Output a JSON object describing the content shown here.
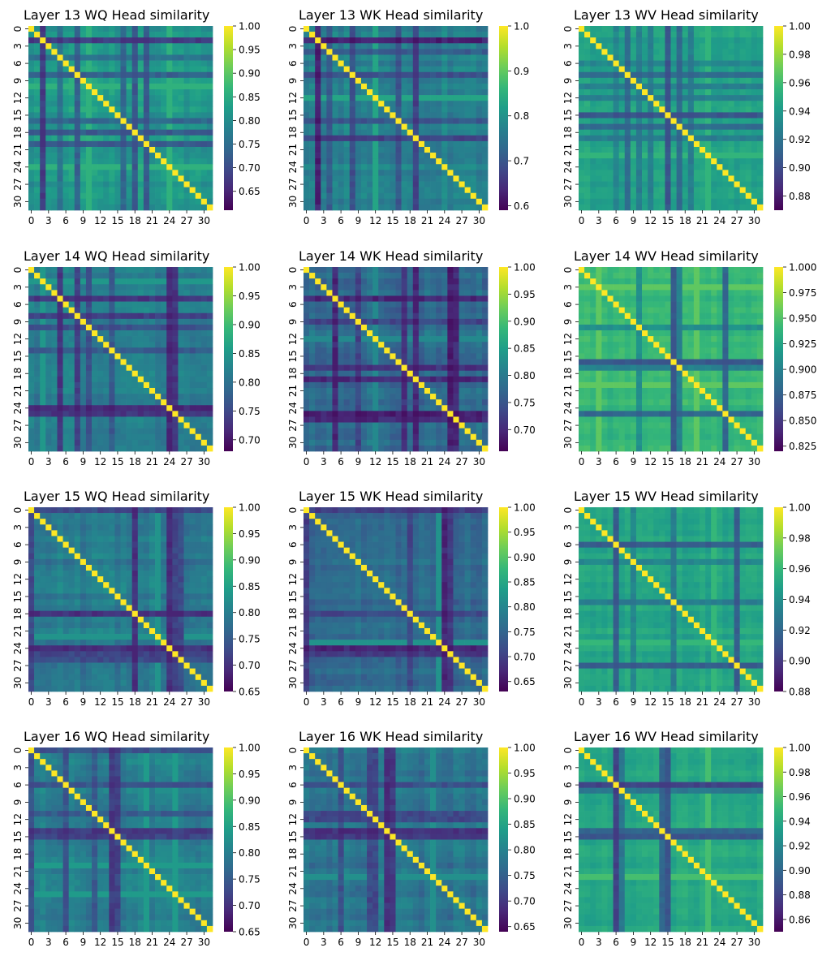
{
  "colormap": "viridis",
  "chart_data": [
    {
      "type": "heatmap",
      "title": "Layer 13 WQ Head similarity",
      "size": 32,
      "tick_step": 3,
      "colorbar": {
        "min": 0.61,
        "max": 1.0,
        "ticks": [
          "0.65",
          "0.70",
          "0.75",
          "0.80",
          "0.85",
          "0.90",
          "0.95",
          "1.00"
        ]
      },
      "typical": 0.82,
      "spread": 0.03,
      "weak_heads": [
        {
          "i": 2,
          "v": 0.68
        },
        {
          "i": 8,
          "v": 0.73
        },
        {
          "i": 16,
          "v": 0.74
        },
        {
          "i": 18,
          "v": 0.72
        },
        {
          "i": 20,
          "v": 0.72
        },
        {
          "i": 5,
          "v": 0.76
        }
      ],
      "strong_heads": [
        {
          "i": 10,
          "v": 0.86
        },
        {
          "i": 24,
          "v": 0.86
        }
      ]
    },
    {
      "type": "heatmap",
      "title": "Layer 13 WK Head similarity",
      "size": 32,
      "tick_step": 3,
      "colorbar": {
        "min": 0.59,
        "max": 1.0,
        "ticks": [
          "0.6",
          "0.7",
          "0.8",
          "0.9",
          "1.0"
        ]
      },
      "typical": 0.78,
      "spread": 0.035,
      "weak_heads": [
        {
          "i": 2,
          "v": 0.63
        },
        {
          "i": 8,
          "v": 0.69
        },
        {
          "i": 16,
          "v": 0.7
        },
        {
          "i": 19,
          "v": 0.67
        },
        {
          "i": 4,
          "v": 0.71
        }
      ],
      "strong_heads": [
        {
          "i": 12,
          "v": 0.83
        }
      ]
    },
    {
      "type": "heatmap",
      "title": "Layer 13 WV Head similarity",
      "size": 32,
      "tick_step": 3,
      "colorbar": {
        "min": 0.87,
        "max": 1.0,
        "ticks": [
          "0.88",
          "0.90",
          "0.92",
          "0.94",
          "0.96",
          "0.98",
          "1.00"
        ]
      },
      "typical": 0.945,
      "spread": 0.008,
      "weak_heads": [
        {
          "i": 8,
          "v": 0.915
        },
        {
          "i": 15,
          "v": 0.905
        },
        {
          "i": 17,
          "v": 0.915
        },
        {
          "i": 10,
          "v": 0.925
        },
        {
          "i": 12,
          "v": 0.925
        },
        {
          "i": 19,
          "v": 0.925
        },
        {
          "i": 6,
          "v": 0.93
        }
      ],
      "strong_heads": [
        {
          "i": 22,
          "v": 0.955
        }
      ]
    },
    {
      "type": "heatmap",
      "title": "Layer 14 WQ Head similarity",
      "size": 32,
      "tick_step": 3,
      "colorbar": {
        "min": 0.68,
        "max": 1.0,
        "ticks": [
          "0.70",
          "0.75",
          "0.80",
          "0.85",
          "0.90",
          "0.95",
          "1.00"
        ]
      },
      "typical": 0.82,
      "spread": 0.025,
      "weak_heads": [
        {
          "i": 5,
          "v": 0.73
        },
        {
          "i": 8,
          "v": 0.74
        },
        {
          "i": 24,
          "v": 0.72
        },
        {
          "i": 25,
          "v": 0.73
        },
        {
          "i": 14,
          "v": 0.77
        },
        {
          "i": 10,
          "v": 0.76
        }
      ],
      "strong_heads": [
        {
          "i": 2,
          "v": 0.85
        }
      ]
    },
    {
      "type": "heatmap",
      "title": "Layer 14 WK Head similarity",
      "size": 32,
      "tick_step": 3,
      "colorbar": {
        "min": 0.66,
        "max": 1.0,
        "ticks": [
          "0.70",
          "0.75",
          "0.80",
          "0.85",
          "0.90",
          "0.95",
          "1.00"
        ]
      },
      "typical": 0.78,
      "spread": 0.03,
      "weak_heads": [
        {
          "i": 5,
          "v": 0.7
        },
        {
          "i": 17,
          "v": 0.71
        },
        {
          "i": 19,
          "v": 0.7
        },
        {
          "i": 25,
          "v": 0.69
        },
        {
          "i": 26,
          "v": 0.7
        },
        {
          "i": 9,
          "v": 0.73
        }
      ],
      "strong_heads": [
        {
          "i": 12,
          "v": 0.82
        }
      ]
    },
    {
      "type": "heatmap",
      "title": "Layer 14 WV Head similarity",
      "size": 32,
      "tick_step": 3,
      "colorbar": {
        "min": 0.82,
        "max": 1.0,
        "ticks": [
          "0.825",
          "0.850",
          "0.875",
          "0.900",
          "0.925",
          "0.950",
          "0.975",
          "1.000"
        ]
      },
      "typical": 0.94,
      "spread": 0.01,
      "weak_heads": [
        {
          "i": 16,
          "v": 0.87
        },
        {
          "i": 25,
          "v": 0.88
        },
        {
          "i": 17,
          "v": 0.9
        },
        {
          "i": 10,
          "v": 0.91
        }
      ],
      "strong_heads": [
        {
          "i": 3,
          "v": 0.955
        },
        {
          "i": 20,
          "v": 0.955
        }
      ]
    },
    {
      "type": "heatmap",
      "title": "Layer 15 WQ Head similarity",
      "size": 32,
      "tick_step": 3,
      "colorbar": {
        "min": 0.65,
        "max": 1.0,
        "ticks": [
          "0.65",
          "0.70",
          "0.75",
          "0.80",
          "0.85",
          "0.90",
          "0.95",
          "1.00"
        ]
      },
      "typical": 0.79,
      "spread": 0.03,
      "weak_heads": [
        {
          "i": 18,
          "v": 0.7
        },
        {
          "i": 24,
          "v": 0.7
        },
        {
          "i": 25,
          "v": 0.72
        },
        {
          "i": 26,
          "v": 0.73
        },
        {
          "i": 0,
          "v": 0.73
        }
      ],
      "strong_heads": [
        {
          "i": 22,
          "v": 0.83
        }
      ]
    },
    {
      "type": "heatmap",
      "title": "Layer 15 WK Head similarity",
      "size": 32,
      "tick_step": 3,
      "colorbar": {
        "min": 0.63,
        "max": 1.0,
        "ticks": [
          "0.65",
          "0.70",
          "0.75",
          "0.80",
          "0.85",
          "0.90",
          "0.95",
          "1.00"
        ]
      },
      "typical": 0.76,
      "spread": 0.03,
      "weak_heads": [
        {
          "i": 24,
          "v": 0.67
        },
        {
          "i": 25,
          "v": 0.69
        },
        {
          "i": 0,
          "v": 0.7
        },
        {
          "i": 18,
          "v": 0.71
        }
      ],
      "strong_heads": [
        {
          "i": 23,
          "v": 0.82
        }
      ]
    },
    {
      "type": "heatmap",
      "title": "Layer 15 WV Head similarity",
      "size": 32,
      "tick_step": 3,
      "colorbar": {
        "min": 0.88,
        "max": 1.0,
        "ticks": [
          "0.88",
          "0.90",
          "0.92",
          "0.94",
          "0.96",
          "0.98",
          "1.00"
        ]
      },
      "typical": 0.95,
      "spread": 0.007,
      "weak_heads": [
        {
          "i": 6,
          "v": 0.915
        },
        {
          "i": 27,
          "v": 0.915
        },
        {
          "i": 16,
          "v": 0.93
        },
        {
          "i": 9,
          "v": 0.935
        }
      ],
      "strong_heads": [
        {
          "i": 23,
          "v": 0.96
        }
      ]
    },
    {
      "type": "heatmap",
      "title": "Layer 16 WQ Head similarity",
      "size": 32,
      "tick_step": 3,
      "colorbar": {
        "min": 0.65,
        "max": 1.0,
        "ticks": [
          "0.65",
          "0.70",
          "0.75",
          "0.80",
          "0.85",
          "0.90",
          "0.95",
          "1.00"
        ]
      },
      "typical": 0.8,
      "spread": 0.03,
      "weak_heads": [
        {
          "i": 14,
          "v": 0.71
        },
        {
          "i": 15,
          "v": 0.72
        },
        {
          "i": 6,
          "v": 0.74
        },
        {
          "i": 11,
          "v": 0.75
        },
        {
          "i": 0,
          "v": 0.74
        }
      ],
      "strong_heads": [
        {
          "i": 20,
          "v": 0.84
        },
        {
          "i": 25,
          "v": 0.84
        }
      ]
    },
    {
      "type": "heatmap",
      "title": "Layer 16 WK Head similarity",
      "size": 32,
      "tick_step": 3,
      "colorbar": {
        "min": 0.64,
        "max": 1.0,
        "ticks": [
          "0.65",
          "0.70",
          "0.75",
          "0.80",
          "0.85",
          "0.90",
          "0.95",
          "1.00"
        ]
      },
      "typical": 0.78,
      "spread": 0.03,
      "weak_heads": [
        {
          "i": 14,
          "v": 0.69
        },
        {
          "i": 15,
          "v": 0.7
        },
        {
          "i": 12,
          "v": 0.72
        },
        {
          "i": 11,
          "v": 0.72
        },
        {
          "i": 6,
          "v": 0.73
        }
      ],
      "strong_heads": [
        {
          "i": 22,
          "v": 0.82
        }
      ]
    },
    {
      "type": "heatmap",
      "title": "Layer 16 WV Head similarity",
      "size": 32,
      "tick_step": 3,
      "colorbar": {
        "min": 0.85,
        "max": 1.0,
        "ticks": [
          "0.86",
          "0.88",
          "0.90",
          "0.92",
          "0.94",
          "0.96",
          "0.98",
          "1.00"
        ]
      },
      "typical": 0.94,
      "spread": 0.008,
      "weak_heads": [
        {
          "i": 6,
          "v": 0.88
        },
        {
          "i": 15,
          "v": 0.89
        },
        {
          "i": 14,
          "v": 0.9
        },
        {
          "i": 7,
          "v": 0.91
        }
      ],
      "strong_heads": [
        {
          "i": 22,
          "v": 0.955
        }
      ]
    }
  ]
}
